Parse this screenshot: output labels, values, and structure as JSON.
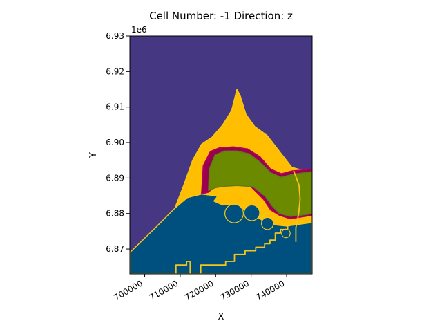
{
  "chart_data": {
    "type": "heatmap",
    "title": "Cell Number: -1 Direction: z",
    "xlabel": "X",
    "ylabel": "Y",
    "y_offset_label": "1e6",
    "xlim": [
      695800,
      747200
    ],
    "ylim": [
      6863000,
      6930000
    ],
    "x_ticks": [
      {
        "value": 700000,
        "label": "700000"
      },
      {
        "value": 710000,
        "label": "710000"
      },
      {
        "value": 720000,
        "label": "720000"
      },
      {
        "value": 730000,
        "label": "730000"
      },
      {
        "value": 740000,
        "label": "740000"
      }
    ],
    "y_ticks": [
      {
        "value": 6870000,
        "label": "6.87"
      },
      {
        "value": 6880000,
        "label": "6.88"
      },
      {
        "value": 6890000,
        "label": "6.89"
      },
      {
        "value": 6900000,
        "label": "6.90"
      },
      {
        "value": 6910000,
        "label": "6.91"
      },
      {
        "value": 6920000,
        "label": "6.92"
      },
      {
        "value": 6930000,
        "label": "6.93"
      }
    ],
    "colors": {
      "background": "#453781",
      "lower_unit": "#00507f",
      "upper_unit": "#ffbe00",
      "band": "#990050",
      "core": "#6b8a00",
      "contour": "#f5c518",
      "grid": "#2d7a6a"
    },
    "regions": [
      {
        "name": "lower-unit",
        "fill": "#00507f",
        "stroke": "#f5c518",
        "points": [
          [
            695800,
            6869000
          ],
          [
            703000,
            6876000
          ],
          [
            708500,
            6881500
          ],
          [
            712000,
            6884500
          ],
          [
            716000,
            6885500
          ],
          [
            720000,
            6885000
          ],
          [
            725000,
            6883000
          ],
          [
            730000,
            6880000
          ],
          [
            735000,
            6877000
          ],
          [
            740000,
            6876500
          ],
          [
            747200,
            6877500
          ],
          [
            747200,
            6863000
          ],
          [
            695800,
            6863000
          ]
        ]
      },
      {
        "name": "upper-unit",
        "fill": "#ffbe00",
        "stroke": "#f5c518",
        "points": [
          [
            708500,
            6881500
          ],
          [
            711000,
            6888000
          ],
          [
            713500,
            6895000
          ],
          [
            716000,
            6899500
          ],
          [
            719000,
            6901500
          ],
          [
            722000,
            6905000
          ],
          [
            724500,
            6909000
          ],
          [
            726000,
            6915000
          ],
          [
            727000,
            6913000
          ],
          [
            728500,
            6908000
          ],
          [
            731000,
            6904500
          ],
          [
            734500,
            6902000
          ],
          [
            738000,
            6897500
          ],
          [
            741500,
            6893000
          ],
          [
            747200,
            6891500
          ],
          [
            747200,
            6877500
          ],
          [
            740000,
            6876500
          ],
          [
            735000,
            6877000
          ],
          [
            730000,
            6880000
          ],
          [
            725000,
            6883000
          ],
          [
            720000,
            6885000
          ],
          [
            716000,
            6885500
          ],
          [
            712000,
            6884500
          ]
        ]
      },
      {
        "name": "band",
        "fill": "#990050",
        "stroke": "#b8005e",
        "points": [
          [
            716000,
            6885500
          ],
          [
            716500,
            6893500
          ],
          [
            718500,
            6897500
          ],
          [
            721000,
            6898500
          ],
          [
            725000,
            6898800
          ],
          [
            729000,
            6898200
          ],
          [
            732500,
            6896000
          ],
          [
            735500,
            6892500
          ],
          [
            738500,
            6891200
          ],
          [
            741500,
            6892000
          ],
          [
            747200,
            6892500
          ],
          [
            747200,
            6879500
          ],
          [
            744000,
            6879000
          ],
          [
            741000,
            6878500
          ],
          [
            738000,
            6879500
          ],
          [
            735500,
            6881000
          ],
          [
            733500,
            6884000
          ],
          [
            730000,
            6887500
          ],
          [
            726000,
            6888500
          ],
          [
            722000,
            6888000
          ],
          [
            719500,
            6887500
          ],
          [
            718000,
            6886000
          ]
        ]
      },
      {
        "name": "core",
        "fill": "#6b8a00",
        "stroke": "#5f7a1a",
        "points": [
          [
            718000,
            6886500
          ],
          [
            718200,
            6892500
          ],
          [
            719800,
            6896500
          ],
          [
            722500,
            6897600
          ],
          [
            726000,
            6897600
          ],
          [
            729500,
            6896800
          ],
          [
            732500,
            6894500
          ],
          [
            735500,
            6891500
          ],
          [
            738500,
            6890200
          ],
          [
            741500,
            6891000
          ],
          [
            747200,
            6891800
          ],
          [
            747200,
            6880000
          ],
          [
            744000,
            6879500
          ],
          [
            741000,
            6879200
          ],
          [
            738000,
            6880000
          ],
          [
            736000,
            6882000
          ],
          [
            734000,
            6884800
          ],
          [
            730500,
            6887600
          ],
          [
            726000,
            6887900
          ],
          [
            722500,
            6887700
          ],
          [
            720000,
            6887300
          ]
        ]
      },
      {
        "name": "core-fold",
        "fill": "#ffbe00",
        "stroke": "#f5c518",
        "points": [
          [
            719500,
            6883500
          ],
          [
            721500,
            6886000
          ],
          [
            724000,
            6886600
          ],
          [
            726500,
            6886700
          ],
          [
            728500,
            6886000
          ],
          [
            730500,
            6884000
          ],
          [
            732000,
            6882000
          ],
          [
            733500,
            6880500
          ],
          [
            734500,
            6880000
          ],
          [
            733000,
            6878800
          ],
          [
            731000,
            6880000
          ],
          [
            729000,
            6881800
          ],
          [
            726500,
            6882500
          ],
          [
            724000,
            6882600
          ],
          [
            722000,
            6882400
          ]
        ]
      }
    ],
    "contour_lines": [
      {
        "name": "contour-lower-stair",
        "points": [
          [
            715800,
            6863000
          ],
          [
            715800,
            6865500
          ],
          [
            722800,
            6865500
          ],
          [
            722800,
            6866500
          ],
          [
            725300,
            6866500
          ],
          [
            725300,
            6868500
          ],
          [
            728300,
            6868500
          ],
          [
            728300,
            6869500
          ],
          [
            731300,
            6869500
          ],
          [
            731300,
            6870500
          ],
          [
            733800,
            6870500
          ],
          [
            733800,
            6871500
          ],
          [
            735300,
            6871500
          ],
          [
            735300,
            6872500
          ],
          [
            736800,
            6872500
          ],
          [
            736800,
            6874500
          ],
          [
            738300,
            6874500
          ],
          [
            738300,
            6875500
          ],
          [
            740300,
            6875500
          ],
          [
            740300,
            6876500
          ]
        ]
      },
      {
        "name": "contour-left-stair",
        "points": [
          [
            708800,
            6863000
          ],
          [
            708800,
            6865500
          ],
          [
            711800,
            6865500
          ],
          [
            711800,
            6866500
          ],
          [
            712800,
            6866500
          ],
          [
            712800,
            6863000
          ]
        ]
      },
      {
        "name": "contour-right-vertical",
        "points": [
          [
            742000,
            6892000
          ],
          [
            743500,
            6888000
          ],
          [
            743800,
            6884000
          ],
          [
            743400,
            6880000
          ],
          [
            742600,
            6876000
          ],
          [
            742600,
            6872000
          ]
        ]
      }
    ],
    "lobes": [
      {
        "name": "lobe-1",
        "cx": 725200,
        "cy": 6880000,
        "r": 2600
      },
      {
        "name": "lobe-2",
        "cx": 730200,
        "cy": 6880200,
        "r": 2200
      },
      {
        "name": "lobe-3",
        "cx": 734600,
        "cy": 6877200,
        "r": 1700
      },
      {
        "name": "lobe-4",
        "cx": 739800,
        "cy": 6874400,
        "r": 1200
      }
    ]
  }
}
